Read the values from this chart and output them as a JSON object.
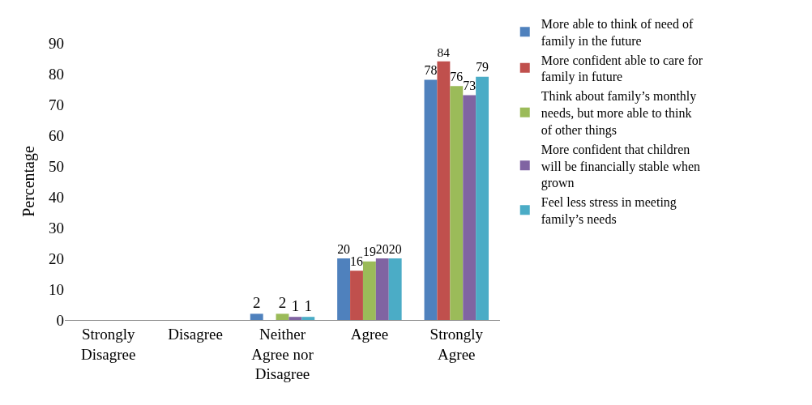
{
  "chart_data": {
    "type": "bar",
    "ylabel": "Percentage",
    "categories": [
      "Strongly Disagree",
      "Disagree",
      "Neither Agree nor Disagree",
      "Agree",
      "Strongly Agree"
    ],
    "series": [
      {
        "name": "More able to think of need of family in the future",
        "color": "#4f81bd",
        "values": [
          null,
          null,
          2,
          20,
          78
        ],
        "value_labels": [
          null,
          null,
          "2",
          "20",
          "78"
        ]
      },
      {
        "name": "More confident able to care for family in future",
        "color": "#c0504d",
        "values": [
          null,
          null,
          null,
          16,
          84
        ],
        "value_labels": [
          null,
          null,
          null,
          "16",
          "84"
        ]
      },
      {
        "name": "Think about family’s monthly needs, but more able to think of other things",
        "color": "#9bbb59",
        "values": [
          null,
          null,
          2,
          19,
          76
        ],
        "value_labels": [
          null,
          null,
          "2",
          "19",
          "76"
        ]
      },
      {
        "name": "More confident that children will be financially stable when grown",
        "color": "#8064a2",
        "values": [
          null,
          null,
          1,
          20,
          73
        ],
        "value_labels": [
          null,
          null,
          "1",
          "20",
          "73"
        ]
      },
      {
        "name": "Feel less stress in meeting family’s needs",
        "color": "#4bacc6",
        "values": [
          null,
          null,
          1,
          20,
          79
        ],
        "value_labels": [
          null,
          null,
          "1",
          "20",
          "79"
        ]
      }
    ],
    "ylim": [
      0,
      90
    ],
    "yticks": [
      0,
      10,
      20,
      30,
      40,
      50,
      60,
      70,
      80,
      90
    ],
    "grid": false,
    "legend": "right"
  }
}
